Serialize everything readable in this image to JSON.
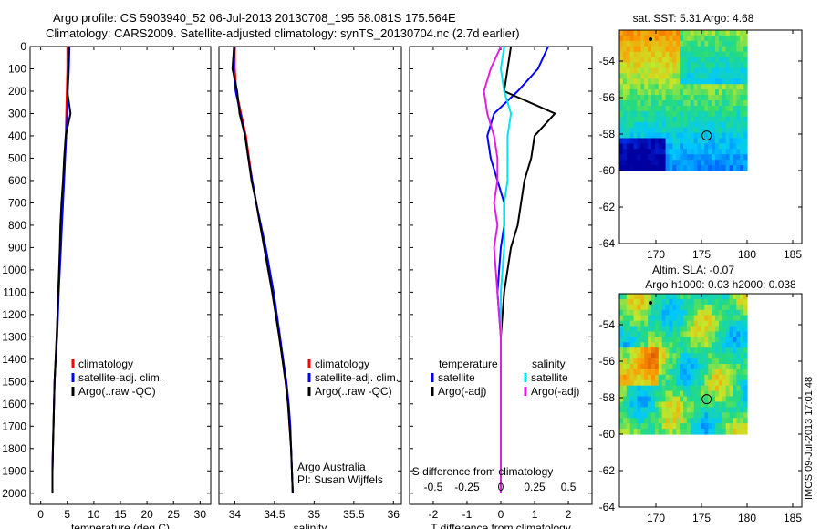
{
  "header": {
    "title_line1": "Argo profile: CS 5903940_52 06-Jul-2013 20130708_195 58.081S 175.564E",
    "title_line2": "Climatology: CARS2009. Satellite-adjusted climatology: synTS_20130704.nc (2.7d earlier)"
  },
  "stamp": "IMOS 09-Jul-2013 17:01:48",
  "colors": {
    "climatology": "#ff0000",
    "satellite": "#0000ff",
    "argo": "#000000",
    "salinity_satellite": "#00e5ee",
    "salinity_argo": "#e020e0"
  },
  "chart_data": [
    {
      "type": "line",
      "id": "temperature",
      "xlabel": "temperature (deg C)",
      "ylabel": "",
      "xlim": [
        -2,
        32
      ],
      "ylim": [
        2050,
        0
      ],
      "xticks": [
        0,
        5,
        10,
        15,
        20,
        25,
        30
      ],
      "yticks": [
        0,
        100,
        200,
        300,
        400,
        500,
        600,
        700,
        800,
        900,
        1000,
        1100,
        1200,
        1300,
        1400,
        1500,
        1600,
        1700,
        1800,
        1900,
        2000
      ],
      "legend": [
        "climatology",
        "satellite-adj. clim.",
        "Argo(..raw -QC)"
      ],
      "series": [
        {
          "name": "climatology",
          "color": "#ff0000",
          "x": [
            5.0,
            5.0,
            4.9,
            4.8,
            4.7,
            4.5,
            4.3,
            4.1,
            3.9,
            3.7,
            3.3,
            3.0,
            2.8,
            2.6,
            2.5,
            2.4,
            2.3,
            2.2,
            2.2
          ],
          "y": [
            0,
            100,
            200,
            300,
            400,
            500,
            600,
            700,
            800,
            900,
            1100,
            1300,
            1400,
            1500,
            1600,
            1700,
            1800,
            1900,
            2000
          ]
        },
        {
          "name": "satellite-adj. clim.",
          "color": "#0000ff",
          "x": [
            5.4,
            5.3,
            5.1,
            5.0,
            4.8,
            4.6,
            4.4,
            4.2,
            4.0,
            3.8,
            3.4,
            3.1,
            2.8,
            2.6,
            2.5,
            2.4,
            2.3,
            2.2,
            2.2
          ],
          "y": [
            0,
            100,
            200,
            300,
            400,
            500,
            600,
            700,
            800,
            900,
            1100,
            1300,
            1400,
            1500,
            1600,
            1700,
            1800,
            1900,
            2000
          ]
        },
        {
          "name": "Argo(..raw -QC)",
          "color": "#000000",
          "x": [
            5.3,
            5.2,
            5.0,
            5.6,
            4.7,
            4.4,
            4.2,
            3.9,
            3.7,
            3.6,
            3.3,
            3.0,
            2.8,
            2.6,
            2.5,
            2.4,
            2.3,
            2.2,
            2.2
          ],
          "y": [
            0,
            100,
            200,
            300,
            400,
            500,
            600,
            700,
            800,
            900,
            1100,
            1300,
            1400,
            1500,
            1600,
            1700,
            1800,
            1900,
            2000
          ]
        }
      ]
    },
    {
      "type": "line",
      "id": "salinity",
      "xlabel": "salinity",
      "ylabel": "",
      "xlim": [
        33.8,
        36.1
      ],
      "ylim": [
        2050,
        0
      ],
      "xticks": [
        34,
        34.5,
        35,
        35.5,
        36
      ],
      "legend": [
        "climatology",
        "satellite-adj. clim.",
        "Argo(..raw -QC)"
      ],
      "annotation": [
        "Argo Australia",
        "PI: Susan Wijffels"
      ],
      "series": [
        {
          "name": "climatology",
          "color": "#ff0000",
          "x": [
            34.0,
            34.0,
            34.02,
            34.08,
            34.14,
            34.18,
            34.22,
            34.27,
            34.32,
            34.38,
            34.48,
            34.56,
            34.6,
            34.64,
            34.67,
            34.69,
            34.71,
            34.72,
            34.73
          ],
          "y": [
            0,
            100,
            200,
            300,
            400,
            500,
            600,
            700,
            800,
            900,
            1100,
            1300,
            1400,
            1500,
            1600,
            1700,
            1800,
            1900,
            2000
          ]
        },
        {
          "name": "satellite-adj. clim.",
          "color": "#0000ff",
          "x": [
            34.0,
            33.98,
            34.01,
            34.07,
            34.13,
            34.17,
            34.22,
            34.27,
            34.33,
            34.39,
            34.49,
            34.57,
            34.61,
            34.65,
            34.68,
            34.7,
            34.71,
            34.72,
            34.73
          ],
          "y": [
            0,
            100,
            200,
            300,
            400,
            500,
            600,
            700,
            800,
            900,
            1100,
            1300,
            1400,
            1500,
            1600,
            1700,
            1800,
            1900,
            2000
          ]
        },
        {
          "name": "Argo(..raw -QC)",
          "color": "#000000",
          "x": [
            33.99,
            33.97,
            34.03,
            34.06,
            34.13,
            34.17,
            34.21,
            34.27,
            34.32,
            34.37,
            34.47,
            34.56,
            34.6,
            34.64,
            34.67,
            34.69,
            34.71,
            34.72,
            34.73
          ],
          "y": [
            0,
            100,
            200,
            300,
            400,
            500,
            600,
            700,
            800,
            900,
            1100,
            1300,
            1400,
            1500,
            1600,
            1700,
            1800,
            1900,
            2000
          ]
        }
      ]
    },
    {
      "type": "line",
      "id": "difference",
      "xlabel": "T difference from climatology",
      "xlabel_top": "S difference from climatology",
      "xlim": [
        -2.7,
        2.7
      ],
      "ylim": [
        2050,
        0
      ],
      "xticks": [
        -2,
        -1,
        0,
        1,
        2
      ],
      "xticks_top": [
        "-0.5",
        "-0.25",
        "0",
        "0.25",
        "0.5"
      ],
      "legend_left_title": "temperature",
      "legend_left": [
        "satellite",
        "Argo(-adj)"
      ],
      "legend_right_title": "salinity",
      "legend_right": [
        "satellite",
        "Argo(-adj)"
      ],
      "series": [
        {
          "name": "temperature satellite",
          "color": "#0000ff",
          "x": [
            1.4,
            1.1,
            0.5,
            -0.2,
            -0.4,
            -0.3,
            -0.1,
            0.1,
            0.1,
            0.0,
            -0.1,
            0.0,
            0.0,
            0.0,
            0.0,
            0.0,
            0.0,
            0.0,
            0.0
          ],
          "y": [
            0,
            100,
            200,
            300,
            400,
            500,
            600,
            700,
            800,
            900,
            1100,
            1300,
            1400,
            1500,
            1600,
            1700,
            1800,
            1900,
            2000
          ]
        },
        {
          "name": "temperature Argo(-adj)",
          "color": "#000000",
          "x": [
            0.3,
            0.2,
            0.1,
            1.6,
            1.0,
            0.9,
            0.7,
            0.6,
            0.5,
            0.3,
            0.1,
            0.0,
            0.0,
            0.0,
            0.0,
            0.0,
            0.0,
            0.0,
            0.0
          ],
          "y": [
            0,
            100,
            200,
            300,
            400,
            500,
            600,
            700,
            800,
            900,
            1100,
            1300,
            1400,
            1500,
            1600,
            1700,
            1800,
            1900,
            2000
          ]
        },
        {
          "name": "salinity satellite",
          "color": "#00e5ee",
          "x": [
            0.1,
            0.0,
            0.1,
            0.3,
            0.2,
            0.2,
            0.2,
            0.1,
            0.1,
            0.1,
            0.0,
            0.0,
            0.0,
            0.0,
            0.0,
            0.0,
            0.0,
            0.0,
            0.0
          ],
          "y": [
            0,
            100,
            200,
            300,
            400,
            500,
            600,
            700,
            800,
            900,
            1100,
            1300,
            1400,
            1500,
            1600,
            1700,
            1800,
            1900,
            2000
          ]
        },
        {
          "name": "salinity Argo(-adj)",
          "color": "#e020e0",
          "x": [
            0.0,
            -0.3,
            -0.5,
            -0.4,
            -0.2,
            -0.1,
            -0.1,
            -0.2,
            -0.1,
            -0.2,
            -0.1,
            0.0,
            0.0,
            0.0,
            0.0,
            0.0,
            0.0,
            0.0,
            0.0
          ],
          "y": [
            0,
            100,
            200,
            300,
            400,
            500,
            600,
            700,
            800,
            900,
            1100,
            1300,
            1400,
            1500,
            1600,
            1700,
            1800,
            1900,
            2000
          ]
        }
      ]
    },
    {
      "type": "heatmap",
      "id": "sst_map",
      "title": "sat. SST: 5.31 Argo: 4.68",
      "xlim": [
        166,
        186
      ],
      "ylim": [
        -64,
        -52.3
      ],
      "xticks": [
        170,
        175,
        180,
        185
      ],
      "yticks": [
        -54,
        -56,
        -58,
        -60,
        -62,
        -64
      ],
      "data_extent": {
        "lon": [
          166,
          180
        ],
        "lat": [
          -60,
          -52.3
        ]
      },
      "argo_lon": 175.564,
      "argo_lat": -58.081,
      "prev_lon": 169.4,
      "prev_lat": -52.8
    },
    {
      "type": "heatmap",
      "id": "sla_map",
      "title": "Altim. SLA: -0.07",
      "subtitle": "Argo h1000: 0.03 h2000: 0.038",
      "xlim": [
        166,
        186
      ],
      "ylim": [
        -64,
        -52.3
      ],
      "xticks": [
        170,
        175,
        180,
        185
      ],
      "yticks": [
        -54,
        -56,
        -58,
        -60,
        -62,
        -64
      ],
      "data_extent": {
        "lon": [
          166,
          180
        ],
        "lat": [
          -60,
          -52.3
        ]
      },
      "argo_lon": 175.564,
      "argo_lat": -58.081,
      "prev_lon": 169.4,
      "prev_lat": -52.8
    }
  ]
}
